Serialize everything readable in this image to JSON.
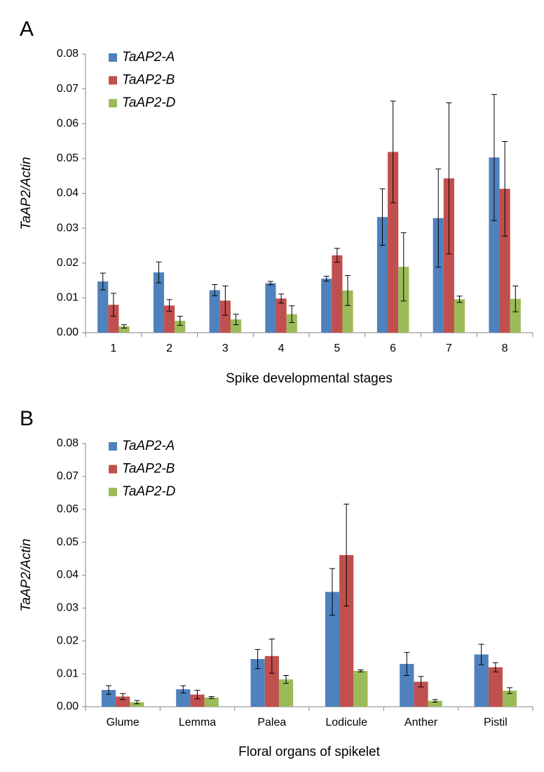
{
  "chart_data": [
    {
      "type": "bar",
      "panel": "A",
      "y_label": "TaAP2/Actin",
      "x_label": "Spike developmental stages",
      "categories": [
        "1",
        "2",
        "3",
        "4",
        "5",
        "6",
        "7",
        "8"
      ],
      "series": [
        {
          "name": "TaAP2-A",
          "color": "#4f81bd",
          "values": [
            0.0147,
            0.0173,
            0.0122,
            0.0142,
            0.0155,
            0.0332,
            0.0329,
            0.0503
          ],
          "errors": [
            0.0024,
            0.003,
            0.0016,
            0.0005,
            0.0007,
            0.0081,
            0.0141,
            0.0181
          ]
        },
        {
          "name": "TaAP2-B",
          "color": "#c0504d",
          "values": [
            0.008,
            0.0078,
            0.0092,
            0.0098,
            0.0222,
            0.0519,
            0.0443,
            0.0413
          ],
          "errors": [
            0.0033,
            0.0017,
            0.0042,
            0.0013,
            0.002,
            0.0146,
            0.0217,
            0.0136
          ]
        },
        {
          "name": "TaAP2-D",
          "color": "#9bbb59",
          "values": [
            0.0018,
            0.0034,
            0.0038,
            0.0053,
            0.0121,
            0.0189,
            0.0096,
            0.0097
          ],
          "errors": [
            0.0005,
            0.0013,
            0.0015,
            0.0024,
            0.0043,
            0.0098,
            0.0009,
            0.0037
          ]
        }
      ],
      "ylim": [
        0,
        0.08
      ],
      "yticks": [
        {
          "value": 0,
          "label": "0.00"
        },
        0.01,
        0.02,
        0.03,
        0.04,
        0.05,
        0.06,
        0.07,
        0.08
      ],
      "legend": "top-left"
    },
    {
      "type": "bar",
      "panel": "B",
      "y_label": "TaAP2/Actin",
      "x_label": "Floral organs of spikelet",
      "categories": [
        "Glume",
        "Lemma",
        "Palea",
        "Lodicule",
        "Anther",
        "Pistil"
      ],
      "series": [
        {
          "name": "TaAP2-A",
          "color": "#4f81bd",
          "values": [
            0.0051,
            0.0053,
            0.0145,
            0.0349,
            0.013,
            0.0159
          ],
          "errors": [
            0.0013,
            0.0011,
            0.0029,
            0.0071,
            0.0035,
            0.0031
          ]
        },
        {
          "name": "TaAP2-B",
          "color": "#c0504d",
          "values": [
            0.0031,
            0.0037,
            0.0154,
            0.0461,
            0.0076,
            0.012
          ],
          "errors": [
            0.0009,
            0.0013,
            0.0052,
            0.0155,
            0.0016,
            0.0014
          ]
        },
        {
          "name": "TaAP2-D",
          "color": "#9bbb59",
          "values": [
            0.0014,
            0.0028,
            0.0083,
            0.0109,
            0.0018,
            0.0049
          ],
          "errors": [
            0.0005,
            0.0003,
            0.0012,
            0.0003,
            0.0004,
            0.0009
          ]
        }
      ],
      "ylim": [
        0,
        0.08
      ],
      "yticks": [
        {
          "value": 0,
          "label": "0.00"
        },
        0.01,
        0.02,
        0.03,
        0.04,
        0.05,
        0.06,
        0.07,
        0.08
      ],
      "legend": "top-left"
    }
  ]
}
